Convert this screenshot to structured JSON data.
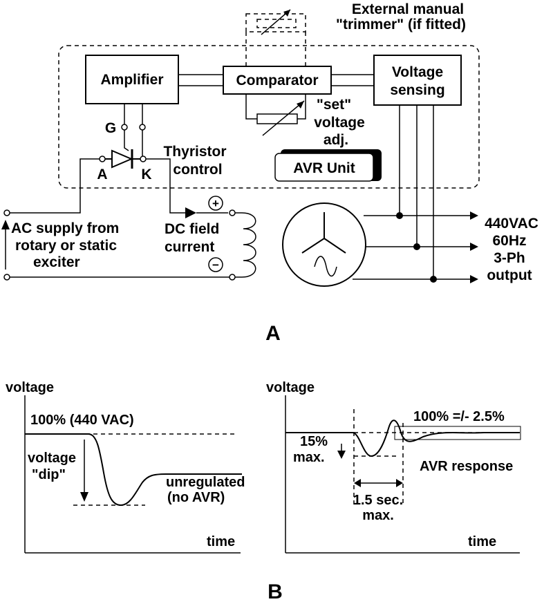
{
  "diagram_a": {
    "label": "A",
    "trimmer_label_1": "External manual",
    "trimmer_label_2": "\"trimmer\" (if fitted)",
    "amplifier": "Amplifier",
    "comparator": "Comparator",
    "voltage_sensing_1": "Voltage",
    "voltage_sensing_2": "sensing",
    "set_adj_1": "\"set\"",
    "set_adj_2": "voltage",
    "set_adj_3": "adj.",
    "gate_label": "G",
    "anode_label": "A",
    "cathode_label": "K",
    "thyristor_1": "Thyristor",
    "thyristor_2": "control",
    "avr_unit": "AVR Unit",
    "plus_sign": "+",
    "minus_sign": "−",
    "ac_supply_1": "AC supply from",
    "ac_supply_2": "rotary or static",
    "ac_supply_3": "exciter",
    "dc_field_1": "DC field",
    "dc_field_2": "current",
    "output_1": "440VAC",
    "output_2": "60Hz",
    "output_3": "3-Ph",
    "output_4": "output"
  },
  "diagram_b": {
    "label": "B",
    "left": {
      "y_axis": "voltage",
      "x_axis": "time",
      "nominal": "100% (440 VAC)",
      "dip_1": "voltage",
      "dip_2": "\"dip\"",
      "unreg_1": "unregulated",
      "unreg_2": "(no AVR)"
    },
    "right": {
      "y_axis": "voltage",
      "x_axis": "time",
      "band": "100% =/- 2.5%",
      "dip_1": "15%",
      "dip_2": "max.",
      "time_1": "1.5 sec.",
      "time_2": "max.",
      "response": "AVR response"
    }
  }
}
